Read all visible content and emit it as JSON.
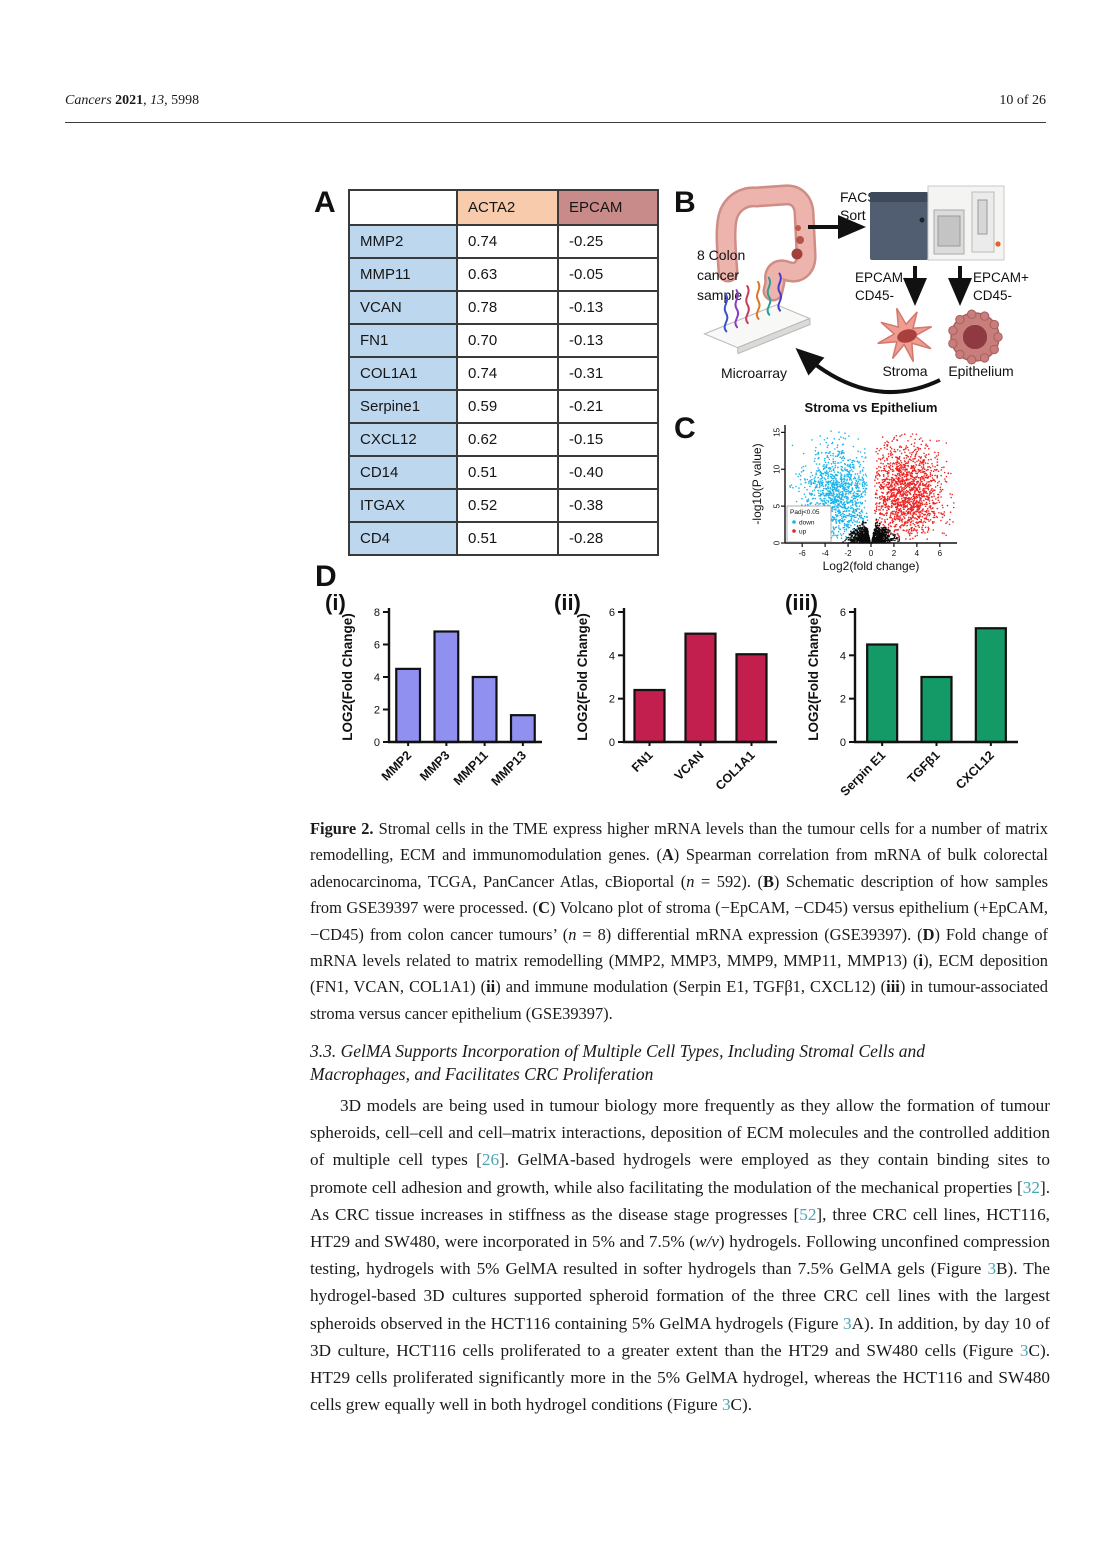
{
  "header": {
    "journal": "Cancers",
    "year": "2021",
    "volume": "13",
    "article": "5998",
    "page_info": "10 of 26"
  },
  "figure": {
    "panelA": {
      "label": "A",
      "headers": [
        "",
        "ACTA2",
        "EPCAM"
      ],
      "rows": [
        [
          "MMP2",
          "0.74",
          "-0.25"
        ],
        [
          "MMP11",
          "0.63",
          "-0.05"
        ],
        [
          "VCAN",
          "0.78",
          "-0.13"
        ],
        [
          "FN1",
          "0.70",
          "-0.13"
        ],
        [
          "COL1A1",
          "0.74",
          "-0.31"
        ],
        [
          "Serpine1",
          "0.59",
          "-0.21"
        ],
        [
          "CXCL12",
          "0.62",
          "-0.15"
        ],
        [
          "CD14",
          "0.51",
          "-0.40"
        ],
        [
          "ITGAX",
          "0.52",
          "-0.38"
        ],
        [
          "CD4",
          "0.51",
          "-0.28"
        ]
      ],
      "header_colors": {
        "acta2": "#f8cbad",
        "epcam": "#c98a8a",
        "row_label": "#bdd7ee"
      }
    },
    "panelB": {
      "label": "B",
      "sample_lines": [
        "8 Colon",
        "cancer",
        "sample"
      ],
      "facs_lines": [
        "FACS",
        "Sort"
      ],
      "gate_left_lines": [
        "EPCAM-",
        "CD45-"
      ],
      "gate_right_lines": [
        "EPCAM+",
        "CD45-"
      ],
      "stroma_label": "Stroma",
      "epithelium_label": "Epithelium",
      "microarray_label": "Microarray"
    },
    "panelC": {
      "label": "C"
    },
    "panelD": {
      "label": "D",
      "sub_labels": [
        "(i)",
        "(ii)",
        "(iii)"
      ]
    }
  },
  "chart_data": [
    {
      "id": "volcano",
      "type": "scatter",
      "title": "Stroma vs Epithelium",
      "xlabel": "Log2(fold change)",
      "ylabel": "-log10(P value)",
      "xlim": [
        -7.5,
        7.5
      ],
      "ylim": [
        0,
        16
      ],
      "xticks": [
        -6,
        -4,
        -2,
        0,
        2,
        4,
        6
      ],
      "yticks": [
        0,
        5,
        10,
        15
      ],
      "legend": {
        "title": "Padj<0.05",
        "items": [
          {
            "label": "down",
            "color": "#1ab4ea"
          },
          {
            "label": "up",
            "color": "#ee2222"
          }
        ]
      },
      "series": [
        {
          "name": "down",
          "kind": "wing",
          "sign": -1,
          "color": "#1ab4ea",
          "n": 1150,
          "x_center": 2.9,
          "x_spread": 1.5,
          "y_center": 6.6,
          "y_spread": 3.2
        },
        {
          "name": "up",
          "kind": "wing",
          "sign": 1,
          "color": "#ee2222",
          "n": 1500,
          "x_center": 3.1,
          "x_spread": 1.6,
          "y_center": 6.8,
          "y_spread": 3.3
        },
        {
          "name": "not-significant",
          "kind": "center",
          "sign": 0,
          "color": "#0c0c0c",
          "n": 1100,
          "x_center": 0,
          "x_spread": 0.85,
          "y_center": 0,
          "y_spread": 1.15
        }
      ]
    },
    {
      "id": "d-i",
      "type": "bar",
      "categories": [
        "MMP2",
        "MMP3",
        "MMP11",
        "MMP13"
      ],
      "values": [
        4.5,
        6.8,
        4.0,
        1.65
      ],
      "ylabel": "LOG2(Fold Change)",
      "ylim": [
        0,
        8
      ],
      "yticks": [
        0,
        2,
        4,
        6,
        8
      ],
      "bar_color": "#9090f0"
    },
    {
      "id": "d-ii",
      "type": "bar",
      "categories": [
        "FN1",
        "VCAN",
        "COL1A1"
      ],
      "values": [
        2.4,
        5.0,
        4.05
      ],
      "ylabel": "LOG2(Fold Change)",
      "ylim": [
        0,
        6
      ],
      "yticks": [
        0,
        2,
        4,
        6
      ],
      "bar_color": "#c21f4e"
    },
    {
      "id": "d-iii",
      "type": "bar",
      "categories": [
        "Serpin E1",
        "TGFβ1",
        "CXCL12"
      ],
      "values": [
        4.5,
        3.0,
        5.25
      ],
      "ylabel": "LOG2(Fold Change)",
      "ylim": [
        0,
        6
      ],
      "yticks": [
        0,
        2,
        4,
        6
      ],
      "bar_color": "#149a66"
    }
  ],
  "caption": {
    "segments": [
      {
        "t": "Figure 2. ",
        "b": 1
      },
      {
        "t": "Stromal cells in the TME express higher mRNA levels than the tumour cells for a number of matrix remodelling, ECM and immunomodulation genes. ("
      },
      {
        "t": "A",
        "b": 1
      },
      {
        "t": ") Spearman correlation from mRNA of bulk colorectal adenocarcinoma, TCGA, PanCancer Atlas, cBioportal ("
      },
      {
        "t": "n",
        "i": 1
      },
      {
        "t": " = 592). ("
      },
      {
        "t": "B",
        "b": 1
      },
      {
        "t": ") Schematic description of how samples from GSE39397 were processed. ("
      },
      {
        "t": "C",
        "b": 1
      },
      {
        "t": ") Volcano plot of stroma (−EpCAM, −CD45) versus epithelium (+EpCAM, −CD45) from colon cancer tumours’ ("
      },
      {
        "t": "n",
        "i": 1
      },
      {
        "t": " = 8) differential mRNA expression (GSE39397). ("
      },
      {
        "t": "D",
        "b": 1
      },
      {
        "t": ") Fold change of mRNA levels related to matrix remodelling (MMP2, MMP3, MMP9, MMP11, MMP13) ("
      },
      {
        "t": "i",
        "b": 1
      },
      {
        "t": "), ECM deposition (FN1, VCAN, COL1A1) ("
      },
      {
        "t": "ii",
        "b": 1
      },
      {
        "t": ") and immune modulation (Serpin E1, TGFβ1, CXCL12) ("
      },
      {
        "t": "iii",
        "b": 1
      },
      {
        "t": ") in tumour-associated stroma versus cancer epithelium (GSE39397)."
      }
    ]
  },
  "section_heading": {
    "text": "3.3. GelMA Supports Incorporation of Multiple Cell Types, Including Stromal Cells and Macrophages, and Facilitates CRC Proliferation"
  },
  "body": {
    "segments": [
      {
        "t": "3D models are being used in tumour biology more frequently as they allow the formation of tumour spheroids, cell–cell and cell–matrix interactions, deposition of ECM molecules and the controlled addition of multiple cell types ["
      },
      {
        "t": "26",
        "ref": 1
      },
      {
        "t": "]. GelMA-based hydrogels were employed as they contain binding sites to promote cell adhesion and growth, while also facilitating the modulation of the mechanical properties ["
      },
      {
        "t": "32",
        "ref": 1
      },
      {
        "t": "]. As CRC tissue increases in stiffness as the disease stage progresses ["
      },
      {
        "t": "52",
        "ref": 1
      },
      {
        "t": "], three CRC cell lines, HCT116, HT29 and SW480, were incorporated in 5% and 7.5% ("
      },
      {
        "t": "w/v",
        "i": 1
      },
      {
        "t": ") hydrogels. Following unconfined compression testing, hydrogels with 5% GelMA resulted in softer hydrogels than 7.5% GelMA gels (Figure "
      },
      {
        "t": "3",
        "ref": 1
      },
      {
        "t": "B). The hydrogel-based 3D cultures supported spheroid formation of the three CRC cell lines with the largest spheroids observed in the HCT116 containing 5% GelMA hydrogels (Figure "
      },
      {
        "t": "3",
        "ref": 1
      },
      {
        "t": "A). In addition, by day 10 of 3D culture, HCT116 cells proliferated to a greater extent than the HT29 and SW480 cells (Figure "
      },
      {
        "t": "3",
        "ref": 1
      },
      {
        "t": "C). HT29 cells proliferated significantly more in the 5% GelMA hydrogel, whereas the HCT116 and SW480 cells grew equally well in both hydrogel conditions (Figure "
      },
      {
        "t": "3",
        "ref": 1
      },
      {
        "t": "C)."
      }
    ]
  },
  "colors": {
    "link": "#4aa3b5",
    "axis": "#111111"
  }
}
